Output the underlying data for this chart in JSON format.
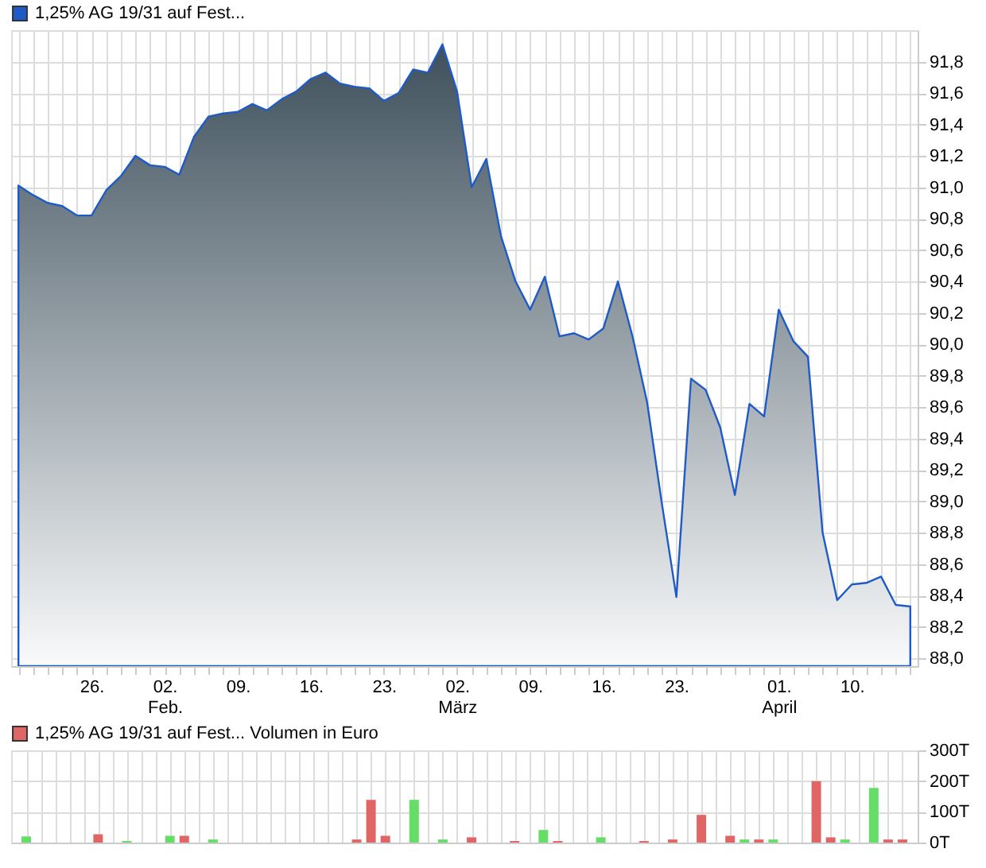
{
  "chart_data": [
    {
      "type": "area",
      "categories": [
        null,
        null,
        null,
        null,
        null,
        "26.",
        null,
        null,
        null,
        null,
        "02. Feb.",
        null,
        null,
        null,
        null,
        "09.",
        null,
        null,
        null,
        null,
        "16.",
        null,
        null,
        null,
        null,
        "23.",
        null,
        null,
        null,
        null,
        "02. März",
        null,
        null,
        null,
        null,
        "09.",
        null,
        null,
        null,
        null,
        "16.",
        null,
        null,
        null,
        null,
        "23.",
        null,
        null,
        null,
        null,
        null,
        null,
        "01. April",
        null,
        null,
        null,
        null,
        "10.",
        null,
        null,
        null,
        null
      ],
      "series": [
        {
          "name": "1,25% AG 19/31 auf Fest...",
          "color": "#1f5bc6",
          "values": [
            91.01,
            90.95,
            90.9,
            90.88,
            90.82,
            90.82,
            90.98,
            91.07,
            91.2,
            91.14,
            91.13,
            91.08,
            91.32,
            91.45,
            91.47,
            91.48,
            91.53,
            91.49,
            91.56,
            91.61,
            91.69,
            91.73,
            91.66,
            91.64,
            91.63,
            91.55,
            91.6,
            91.75,
            91.73,
            91.91,
            91.61,
            91.0,
            91.18,
            90.69,
            90.4,
            90.22,
            90.43,
            90.05,
            90.07,
            90.03,
            90.1,
            90.4,
            90.05,
            89.63,
            88.99,
            88.39,
            89.78,
            89.71,
            89.47,
            89.04,
            89.62,
            89.54,
            90.22,
            90.02,
            89.92,
            88.8,
            88.37,
            88.47,
            88.48,
            88.52,
            88.34,
            88.33
          ]
        }
      ],
      "ylim": [
        87.95,
        92.0
      ],
      "yticks": [
        {
          "value": 88.0,
          "label": "88,0"
        },
        {
          "value": 88.2,
          "label": "88,2"
        },
        {
          "value": 88.4,
          "label": "88,4"
        },
        {
          "value": 88.6,
          "label": "88,6"
        },
        {
          "value": 88.8,
          "label": "88,8"
        },
        {
          "value": 89.0,
          "label": "89,0"
        },
        {
          "value": 89.2,
          "label": "89,2"
        },
        {
          "value": 89.4,
          "label": "89,4"
        },
        {
          "value": 89.6,
          "label": "89,6"
        },
        {
          "value": 89.8,
          "label": "89,8"
        },
        {
          "value": 90.0,
          "label": "90,0"
        },
        {
          "value": 90.2,
          "label": "90,2"
        },
        {
          "value": 90.4,
          "label": "90,4"
        },
        {
          "value": 90.6,
          "label": "90,6"
        },
        {
          "value": 90.8,
          "label": "90,8"
        },
        {
          "value": 91.0,
          "label": "91,0"
        },
        {
          "value": 91.2,
          "label": "91,2"
        },
        {
          "value": 91.4,
          "label": "91,4"
        },
        {
          "value": 91.6,
          "label": "91,6"
        },
        {
          "value": 91.8,
          "label": "91,8"
        }
      ],
      "grid": true,
      "legend": "top left"
    },
    {
      "type": "bar",
      "categories": [
        null,
        null,
        null,
        null,
        null,
        null,
        null,
        null,
        null,
        null,
        null,
        null,
        null,
        null,
        null,
        null,
        null,
        null,
        null,
        null,
        null,
        null,
        null,
        null,
        null,
        null,
        null,
        null,
        null,
        null,
        null,
        null,
        null,
        null,
        null,
        null,
        null,
        null,
        null,
        null,
        null,
        null,
        null,
        null,
        null,
        null,
        null,
        null,
        null,
        null,
        null,
        null,
        null,
        null,
        null,
        null,
        null,
        null,
        null,
        null,
        null,
        null
      ],
      "series": [
        {
          "name": "1,25% AG 19/31 auf Fest... Volumen in Euro",
          "color": "#e06666",
          "values": [
            20,
            null,
            null,
            null,
            null,
            27,
            null,
            5,
            null,
            null,
            22,
            22,
            null,
            10,
            null,
            null,
            null,
            null,
            null,
            null,
            null,
            null,
            null,
            10,
            139,
            22,
            null,
            139,
            null,
            10,
            null,
            17,
            null,
            null,
            5,
            null,
            41,
            5,
            null,
            null,
            17,
            null,
            null,
            5,
            null,
            10,
            null,
            90,
            null,
            22,
            10,
            10,
            10,
            null,
            null,
            200,
            17,
            10,
            null,
            178,
            10,
            10
          ],
          "colors": [
            "#66dd66",
            null,
            null,
            null,
            null,
            "#e06666",
            null,
            "#66dd66",
            null,
            null,
            "#66dd66",
            "#e06666",
            null,
            "#66dd66",
            null,
            null,
            null,
            null,
            null,
            null,
            null,
            null,
            null,
            "#e06666",
            "#e06666",
            "#e06666",
            null,
            "#66dd66",
            null,
            "#66dd66",
            null,
            "#e06666",
            null,
            null,
            "#e06666",
            null,
            "#66dd66",
            "#e06666",
            null,
            null,
            "#66dd66",
            null,
            null,
            "#e06666",
            null,
            "#e06666",
            null,
            "#e06666",
            null,
            "#e06666",
            "#66dd66",
            "#e06666",
            "#66dd66",
            null,
            null,
            "#e06666",
            "#e06666",
            "#66dd66",
            null,
            "#66dd66",
            "#e06666",
            "#e06666"
          ]
        }
      ],
      "ylim": [
        0,
        300
      ],
      "yticks": [
        {
          "value": 0,
          "label": "0T"
        },
        {
          "value": 100,
          "label": "100T"
        },
        {
          "value": 200,
          "label": "200T"
        },
        {
          "value": 300,
          "label": "300T"
        }
      ],
      "grid": true,
      "legend": "top left",
      "tick_labels": "y"
    }
  ]
}
